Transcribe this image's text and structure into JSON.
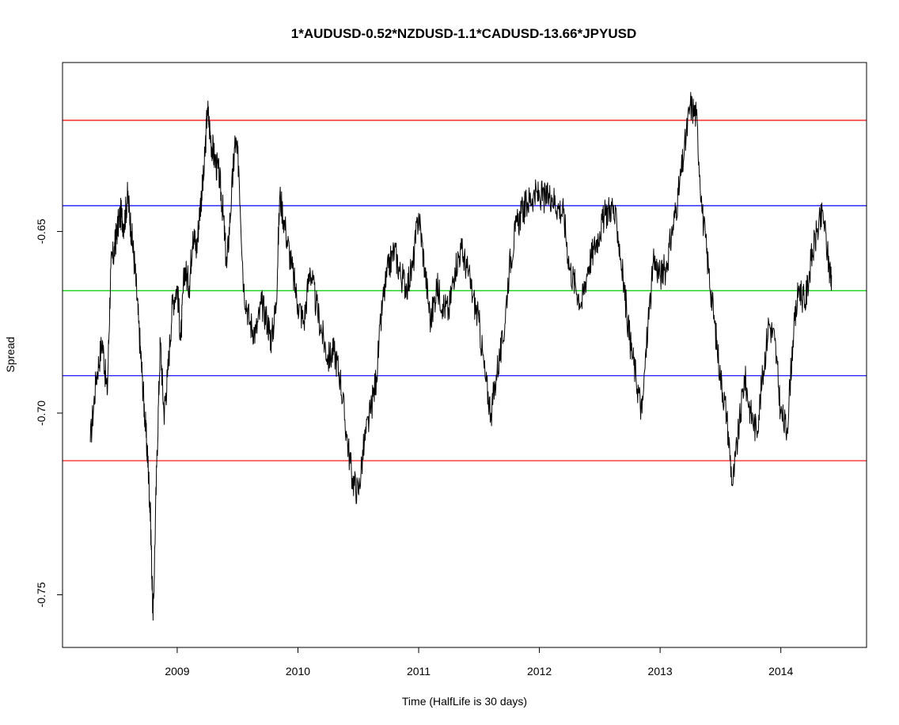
{
  "chart_data": {
    "type": "line",
    "title": "1*AUDUSD-0.52*NZDUSD-1.1*CADUSD-13.66*JPYUSD",
    "xlabel": "Time  (HalfLife is 30 days)",
    "ylabel": "Spread",
    "xlim": [
      2008.05,
      2014.71
    ],
    "ylim": [
      -0.7645,
      -0.6035
    ],
    "x_ticks": [
      2009,
      2010,
      2011,
      2012,
      2013,
      2014
    ],
    "x_tick_labels": [
      "2009",
      "2010",
      "2011",
      "2012",
      "2013",
      "2014"
    ],
    "y_ticks": [
      -0.75,
      -0.7,
      -0.65
    ],
    "y_tick_labels": [
      "-0.75",
      "-0.70",
      "-0.65"
    ],
    "grid": false,
    "reference_lines": [
      {
        "y": -0.6194,
        "color": "#ff0000"
      },
      {
        "y": -0.6429,
        "color": "#0000ff"
      },
      {
        "y": -0.6663,
        "color": "#00cc00"
      },
      {
        "y": -0.6897,
        "color": "#0000ff"
      },
      {
        "y": -0.7131,
        "color": "#ff0000"
      }
    ],
    "series": [
      {
        "color": "#000000",
        "x": [
          2008.28,
          2008.33,
          2008.38,
          2008.42,
          2008.45,
          2008.48,
          2008.5,
          2008.53,
          2008.56,
          2008.59,
          2008.62,
          2008.65,
          2008.68,
          2008.71,
          2008.74,
          2008.76,
          2008.78,
          2008.8,
          2008.83,
          2008.86,
          2008.89,
          2008.92,
          2008.96,
          2009.0,
          2009.03,
          2009.06,
          2009.1,
          2009.13,
          2009.16,
          2009.19,
          2009.22,
          2009.25,
          2009.28,
          2009.31,
          2009.35,
          2009.38,
          2009.41,
          2009.45,
          2009.48,
          2009.51,
          2009.55,
          2009.6,
          2009.65,
          2009.7,
          2009.75,
          2009.78,
          2009.82,
          2009.85,
          2009.9,
          2009.95,
          2010.0,
          2010.05,
          2010.1,
          2010.15,
          2010.2,
          2010.25,
          2010.3,
          2010.35,
          2010.4,
          2010.45,
          2010.5,
          2010.55,
          2010.6,
          2010.65,
          2010.7,
          2010.75,
          2010.8,
          2010.85,
          2010.9,
          2010.95,
          2011.0,
          2011.05,
          2011.1,
          2011.15,
          2011.2,
          2011.25,
          2011.3,
          2011.35,
          2011.4,
          2011.45,
          2011.5,
          2011.55,
          2011.6,
          2011.65,
          2011.7,
          2011.75,
          2011.8,
          2011.85,
          2011.9,
          2011.95,
          2012.0,
          2012.05,
          2012.1,
          2012.15,
          2012.2,
          2012.25,
          2012.3,
          2012.35,
          2012.4,
          2012.45,
          2012.5,
          2012.55,
          2012.6,
          2012.65,
          2012.7,
          2012.75,
          2012.8,
          2012.85,
          2012.9,
          2012.95,
          2013.0,
          2013.05,
          2013.1,
          2013.15,
          2013.2,
          2013.25,
          2013.3,
          2013.35,
          2013.4,
          2013.45,
          2013.5,
          2013.55,
          2013.6,
          2013.65,
          2013.7,
          2013.75,
          2013.8,
          2013.85,
          2013.9,
          2013.95,
          2014.0,
          2014.05,
          2014.1,
          2014.15,
          2014.2,
          2014.25,
          2014.3,
          2014.35,
          2014.4,
          2014.42
        ],
        "values": [
          -0.708,
          -0.69,
          -0.68,
          -0.695,
          -0.66,
          -0.655,
          -0.65,
          -0.645,
          -0.648,
          -0.64,
          -0.65,
          -0.66,
          -0.675,
          -0.69,
          -0.705,
          -0.715,
          -0.73,
          -0.757,
          -0.715,
          -0.68,
          -0.7,
          -0.69,
          -0.67,
          -0.665,
          -0.68,
          -0.66,
          -0.665,
          -0.65,
          -0.655,
          -0.643,
          -0.635,
          -0.616,
          -0.625,
          -0.63,
          -0.635,
          -0.645,
          -0.66,
          -0.64,
          -0.625,
          -0.632,
          -0.665,
          -0.675,
          -0.678,
          -0.67,
          -0.675,
          -0.68,
          -0.67,
          -0.64,
          -0.65,
          -0.66,
          -0.67,
          -0.675,
          -0.66,
          -0.67,
          -0.678,
          -0.685,
          -0.683,
          -0.69,
          -0.705,
          -0.718,
          -0.722,
          -0.708,
          -0.7,
          -0.69,
          -0.67,
          -0.66,
          -0.655,
          -0.662,
          -0.665,
          -0.66,
          -0.645,
          -0.66,
          -0.675,
          -0.665,
          -0.67,
          -0.672,
          -0.66,
          -0.655,
          -0.66,
          -0.668,
          -0.675,
          -0.69,
          -0.7,
          -0.688,
          -0.68,
          -0.66,
          -0.65,
          -0.645,
          -0.642,
          -0.64,
          -0.64,
          -0.641,
          -0.64,
          -0.643,
          -0.645,
          -0.66,
          -0.665,
          -0.67,
          -0.66,
          -0.655,
          -0.65,
          -0.645,
          -0.643,
          -0.65,
          -0.665,
          -0.68,
          -0.69,
          -0.7,
          -0.675,
          -0.658,
          -0.662,
          -0.66,
          -0.65,
          -0.64,
          -0.628,
          -0.615,
          -0.618,
          -0.645,
          -0.66,
          -0.675,
          -0.69,
          -0.7,
          -0.72,
          -0.705,
          -0.69,
          -0.7,
          -0.705,
          -0.69,
          -0.675,
          -0.68,
          -0.7,
          -0.705,
          -0.68,
          -0.665,
          -0.67,
          -0.658,
          -0.65,
          -0.645,
          -0.66,
          -0.662
        ]
      }
    ]
  }
}
